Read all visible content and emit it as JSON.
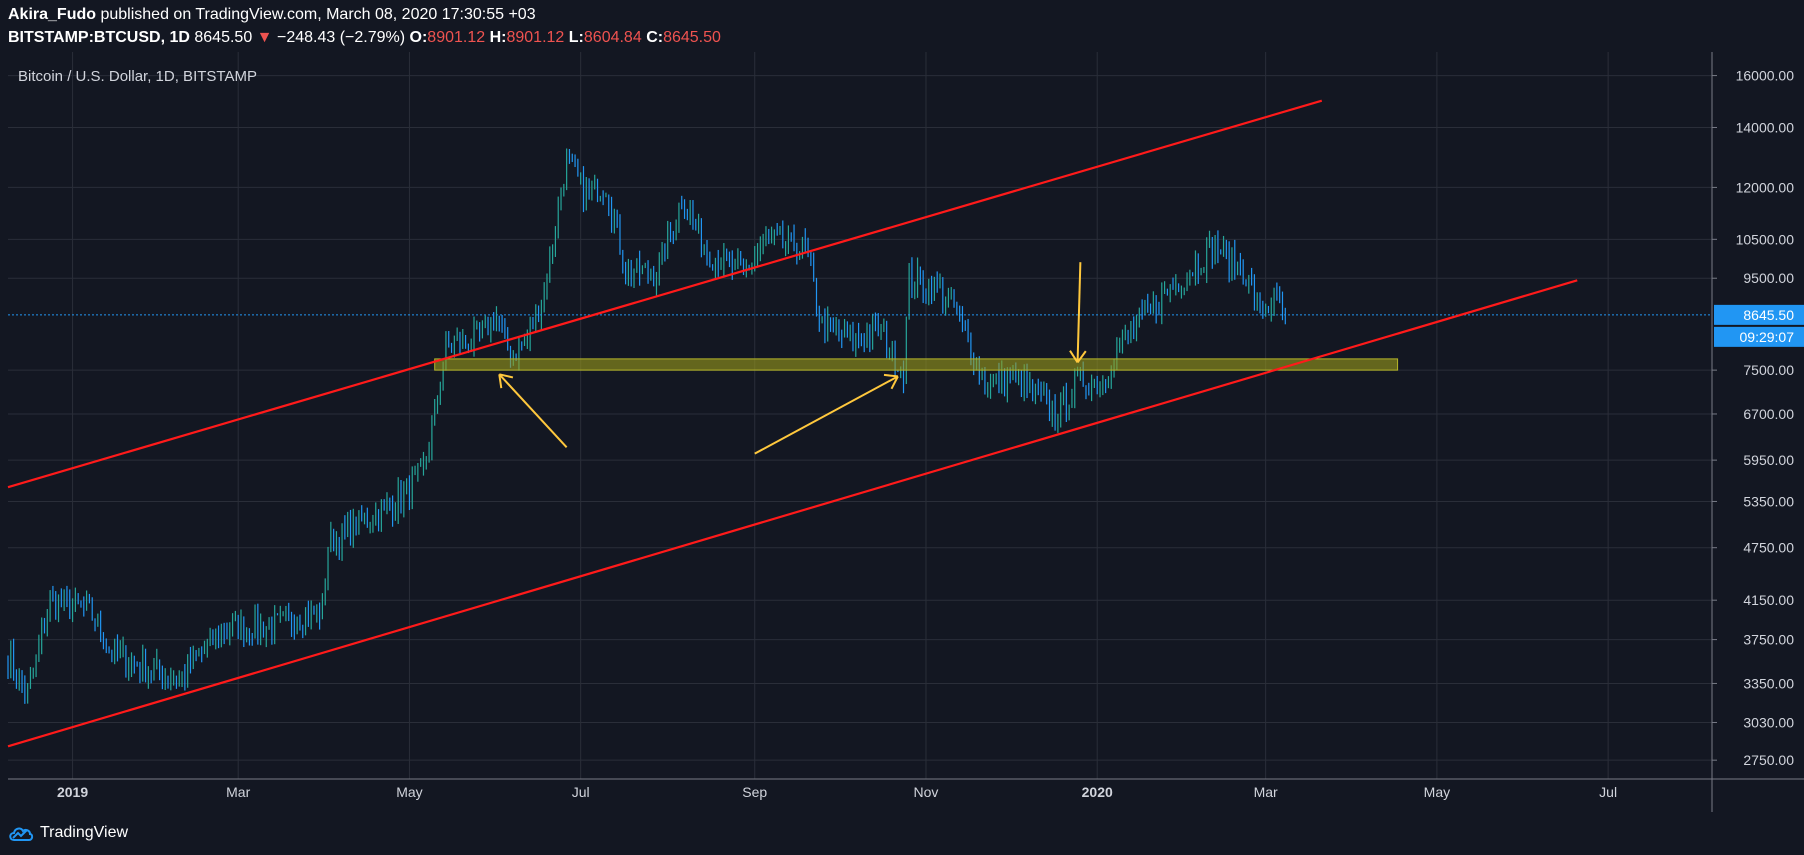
{
  "header": {
    "author": "Akira_Fudo",
    "published_text": "published on TradingView.com, March 08, 2020 17:30:55 +03",
    "symbol": "BITSTAMP:BTCUSD, 1D",
    "last": "8645.50",
    "change": "−248.43 (−2.79%)",
    "o_label": "O:",
    "o_value": "8901.12",
    "h_label": "H:",
    "h_value": "8901.12",
    "l_label": "L:",
    "l_value": "8604.84",
    "c_label": "C:",
    "c_value": "8645.50"
  },
  "footer": {
    "brand": "TradingView"
  },
  "colors": {
    "bg": "#131722",
    "grid": "#2a2e39",
    "up": "#26a69a",
    "down": "#2196f3",
    "trend": "#ff1a1a",
    "zone": "#9b9b1a",
    "arrow": "#ffc83d",
    "price_line": "#2196f3"
  },
  "chart_data": {
    "type": "candlestick",
    "title": "Bitcoin / U.S. Dollar, 1D, BITSTAMP",
    "y_scale": "log",
    "ylim": [
      2620,
      17000
    ],
    "y_ticks": [
      "16000.00",
      "14000.00",
      "12000.00",
      "10500.00",
      "9500.00",
      "8645.50",
      "7500.00",
      "6700.00",
      "5950.00",
      "5350.00",
      "4750.00",
      "4150.00",
      "3750.00",
      "3350.00",
      "3030.00",
      "2750.00"
    ],
    "y_tick_values": [
      16000,
      14000,
      12000,
      10500,
      9500,
      7500,
      6700,
      5950,
      5350,
      4750,
      4150,
      3750,
      3350,
      3030,
      2750
    ],
    "last_price": 8645.5,
    "last_price_label": "8645.50",
    "countdown_label": "09:29:07",
    "x_ticks": [
      "2019",
      "Mar",
      "May",
      "Jul",
      "Sep",
      "Nov",
      "2020",
      "Mar",
      "May",
      "Jul"
    ],
    "x_tick_dates": [
      "2019-01-01",
      "2019-03-01",
      "2019-05-01",
      "2019-07-01",
      "2019-09-01",
      "2019-11-01",
      "2020-01-01",
      "2020-03-01",
      "2020-05-01",
      "2020-07-01"
    ],
    "x_range": [
      "2018-12-09",
      "2020-08-07"
    ],
    "anchors": [
      [
        "2018-12-09",
        3600
      ],
      [
        "2018-12-16",
        3250
      ],
      [
        "2018-12-24",
        4150
      ],
      [
        "2019-01-07",
        4050
      ],
      [
        "2019-01-14",
        3650
      ],
      [
        "2019-01-28",
        3480
      ],
      [
        "2019-02-08",
        3400
      ],
      [
        "2019-02-24",
        3850
      ],
      [
        "2019-03-15",
        3900
      ],
      [
        "2019-03-31",
        4050
      ],
      [
        "2019-04-02",
        4800
      ],
      [
        "2019-04-15",
        5100
      ],
      [
        "2019-04-25",
        5300
      ],
      [
        "2019-05-05",
        5700
      ],
      [
        "2019-05-10",
        6600
      ],
      [
        "2019-05-14",
        8000
      ],
      [
        "2019-05-25",
        8100
      ],
      [
        "2019-06-01",
        8600
      ],
      [
        "2019-06-06",
        7800
      ],
      [
        "2019-06-12",
        8100
      ],
      [
        "2019-06-18",
        9200
      ],
      [
        "2019-06-26",
        12800
      ],
      [
        "2019-07-03",
        11800
      ],
      [
        "2019-07-10",
        12100
      ],
      [
        "2019-07-17",
        9700
      ],
      [
        "2019-07-28",
        9600
      ],
      [
        "2019-08-06",
        11700
      ],
      [
        "2019-08-15",
        10200
      ],
      [
        "2019-08-28",
        9600
      ],
      [
        "2019-09-05",
        10500
      ],
      [
        "2019-09-19",
        10200
      ],
      [
        "2019-09-25",
        8400
      ],
      [
        "2019-10-05",
        8100
      ],
      [
        "2019-10-15",
        8300
      ],
      [
        "2019-10-24",
        7500
      ],
      [
        "2019-10-26",
        9500
      ],
      [
        "2019-11-05",
        9300
      ],
      [
        "2019-11-12",
        8700
      ],
      [
        "2019-11-22",
        7200
      ],
      [
        "2019-12-02",
        7400
      ],
      [
        "2019-12-17",
        6700
      ],
      [
        "2019-12-26",
        7300
      ],
      [
        "2020-01-03",
        7300
      ],
      [
        "2020-01-10",
        8100
      ],
      [
        "2020-01-19",
        8700
      ],
      [
        "2020-01-28",
        9300
      ],
      [
        "2020-02-12",
        10300
      ],
      [
        "2020-02-22",
        9700
      ],
      [
        "2020-02-28",
        8700
      ],
      [
        "2020-03-04",
        9000
      ],
      [
        "2020-03-08",
        8645
      ]
    ],
    "trendlines": [
      {
        "name": "upper-channel",
        "from": [
          "2018-12-09",
          5550
        ],
        "to": [
          "2020-03-21",
          15000
        ]
      },
      {
        "name": "lower-channel",
        "from": [
          "2018-12-09",
          2850
        ],
        "to": [
          "2020-06-20",
          9450
        ]
      }
    ],
    "zone": {
      "from": "2019-05-10",
      "to": "2020-04-17",
      "low": 7500,
      "high": 7720
    },
    "arrows": [
      {
        "name": "arrow-1",
        "from": [
          "2019-06-26",
          6150
        ],
        "to": [
          "2019-06-02",
          7420
        ]
      },
      {
        "name": "arrow-2",
        "from": [
          "2019-09-01",
          6050
        ],
        "to": [
          "2019-10-22",
          7380
        ]
      },
      {
        "name": "arrow-3",
        "from": [
          "2019-12-26",
          9900
        ],
        "to": [
          "2019-12-25",
          7650
        ]
      }
    ]
  }
}
